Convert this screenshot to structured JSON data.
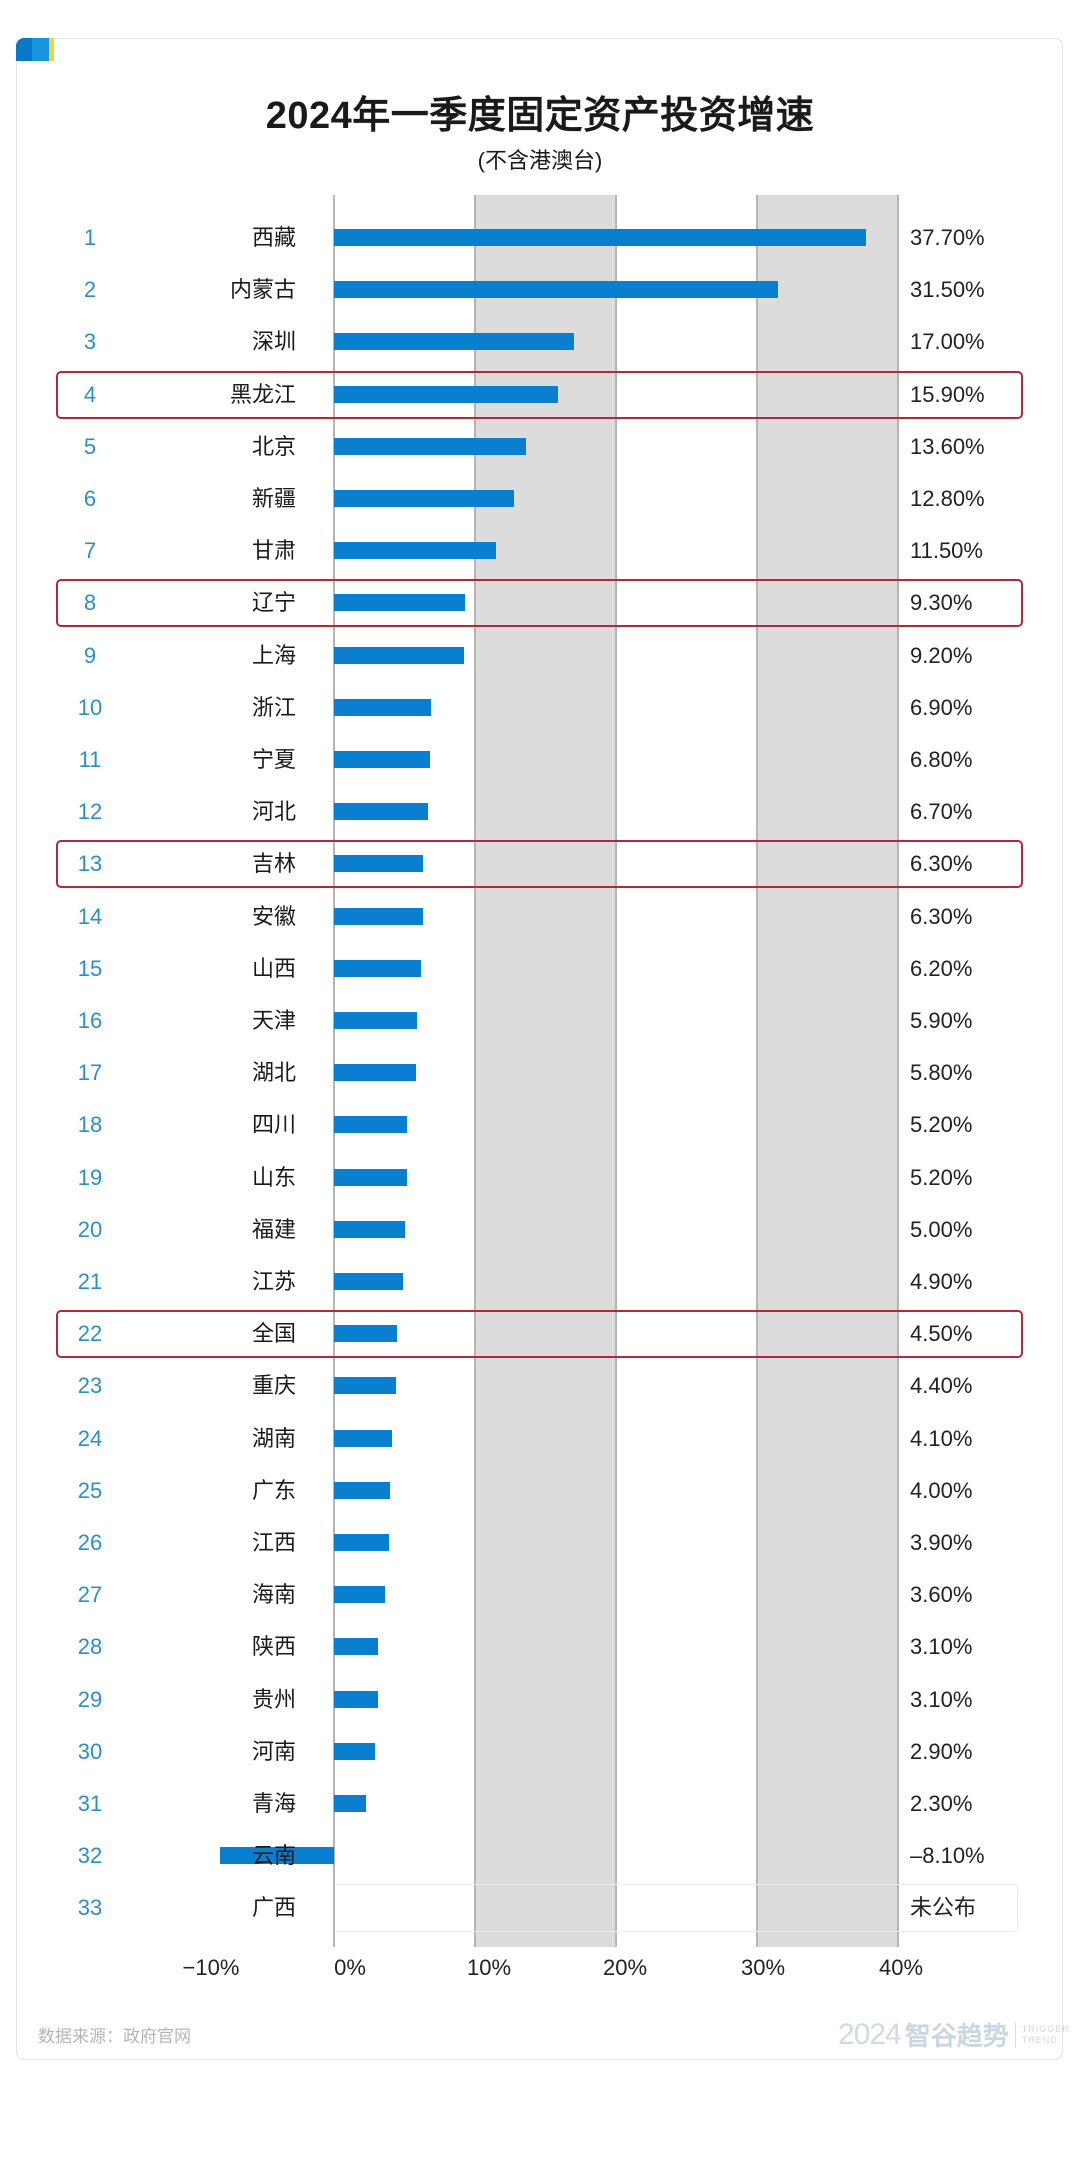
{
  "header": {
    "title": "2024年一季度固定资产投资增速",
    "subtitle": "(不含港澳台)"
  },
  "footer": {
    "source": "数据来源：政府官网",
    "watermark_year": "2024",
    "watermark_brand": "智谷趋势",
    "watermark_en_1": "TRIGGER",
    "watermark_en_2": "TREND"
  },
  "colors": {
    "bar": "#0a7fcf",
    "rank": "#2a8fc9",
    "highlight_box": "#b3283a",
    "band": "#dcdcdc",
    "accent_blue": "#0a78c8",
    "accent_yellow": "#f5d23a"
  },
  "axis": {
    "ticks": [
      "−10%",
      "0%",
      "10%",
      "20%",
      "30%",
      "40%"
    ]
  },
  "rows": [
    {
      "rank": "1",
      "name": "西藏",
      "value": "37.70%"
    },
    {
      "rank": "2",
      "name": "内蒙古",
      "value": "31.50%"
    },
    {
      "rank": "3",
      "name": "深圳",
      "value": "17.00%"
    },
    {
      "rank": "4",
      "name": "黑龙江",
      "value": "15.90%"
    },
    {
      "rank": "5",
      "name": "北京",
      "value": "13.60%"
    },
    {
      "rank": "6",
      "name": "新疆",
      "value": "12.80%"
    },
    {
      "rank": "7",
      "name": "甘肃",
      "value": "11.50%"
    },
    {
      "rank": "8",
      "name": "辽宁",
      "value": "9.30%"
    },
    {
      "rank": "9",
      "name": "上海",
      "value": "9.20%"
    },
    {
      "rank": "10",
      "name": "浙江",
      "value": "6.90%"
    },
    {
      "rank": "11",
      "name": "宁夏",
      "value": "6.80%"
    },
    {
      "rank": "12",
      "name": "河北",
      "value": "6.70%"
    },
    {
      "rank": "13",
      "name": "吉林",
      "value": "6.30%"
    },
    {
      "rank": "14",
      "name": "安徽",
      "value": "6.30%"
    },
    {
      "rank": "15",
      "name": "山西",
      "value": "6.20%"
    },
    {
      "rank": "16",
      "name": "天津",
      "value": "5.90%"
    },
    {
      "rank": "17",
      "name": "湖北",
      "value": "5.80%"
    },
    {
      "rank": "18",
      "name": "四川",
      "value": "5.20%"
    },
    {
      "rank": "19",
      "name": "山东",
      "value": "5.20%"
    },
    {
      "rank": "20",
      "name": "福建",
      "value": "5.00%"
    },
    {
      "rank": "21",
      "name": "江苏",
      "value": "4.90%"
    },
    {
      "rank": "22",
      "name": "全国",
      "value": "4.50%"
    },
    {
      "rank": "23",
      "name": "重庆",
      "value": "4.40%"
    },
    {
      "rank": "24",
      "name": "湖南",
      "value": "4.10%"
    },
    {
      "rank": "25",
      "name": "广东",
      "value": "4.00%"
    },
    {
      "rank": "26",
      "name": "江西",
      "value": "3.90%"
    },
    {
      "rank": "27",
      "name": "海南",
      "value": "3.60%"
    },
    {
      "rank": "28",
      "name": "陕西",
      "value": "3.10%"
    },
    {
      "rank": "29",
      "name": "贵州",
      "value": "3.10%"
    },
    {
      "rank": "30",
      "name": "河南",
      "value": "2.90%"
    },
    {
      "rank": "31",
      "name": "青海",
      "value": "2.30%"
    },
    {
      "rank": "32",
      "name": "云南",
      "value": "–8.10%"
    },
    {
      "rank": "33",
      "name": "广西",
      "value": "未公布"
    }
  ],
  "chart_data": {
    "type": "bar",
    "orientation": "horizontal",
    "title": "2024年一季度固定资产投资增速",
    "subtitle": "(不含港澳台)",
    "xlabel": "",
    "ylabel": "",
    "xlim": [
      -10,
      40
    ],
    "x_ticks": [
      "−10%",
      "0%",
      "10%",
      "20%",
      "30%",
      "40%"
    ],
    "grid": "alternating shaded bands 10–20% and 30–40%",
    "categories": [
      "西藏",
      "内蒙古",
      "深圳",
      "黑龙江",
      "北京",
      "新疆",
      "甘肃",
      "辽宁",
      "上海",
      "浙江",
      "宁夏",
      "河北",
      "吉林",
      "安徽",
      "山西",
      "天津",
      "湖北",
      "四川",
      "山东",
      "福建",
      "江苏",
      "全国",
      "重庆",
      "湖南",
      "广东",
      "江西",
      "海南",
      "陕西",
      "贵州",
      "河南",
      "青海",
      "云南",
      "广西"
    ],
    "values": [
      37.7,
      31.5,
      17.0,
      15.9,
      13.6,
      12.8,
      11.5,
      9.3,
      9.2,
      6.9,
      6.8,
      6.7,
      6.3,
      6.3,
      6.2,
      5.9,
      5.8,
      5.2,
      5.2,
      5.0,
      4.9,
      4.5,
      4.4,
      4.1,
      4.0,
      3.9,
      3.6,
      3.1,
      3.1,
      2.9,
      2.3,
      -8.1,
      null
    ],
    "highlighted": [
      "黑龙江",
      "辽宁",
      "吉林",
      "全国"
    ],
    "annotations": [
      "广西: 未公布"
    ],
    "source": "数据来源：政府官网"
  }
}
